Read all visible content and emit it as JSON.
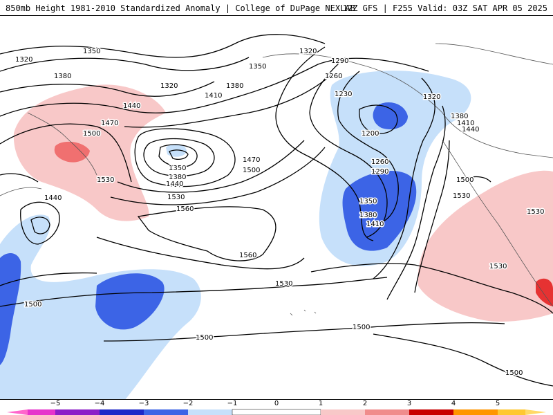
{
  "header": {
    "title_left": "850mb Height 1981-2010 Standardized Anomaly | College of DuPage NEXLAB",
    "title_right": "12Z GFS | F255 Valid: 03Z SAT APR 05 2025"
  },
  "colors": {
    "neg1": "#c6e0fa",
    "neg2": "#6e9cf0",
    "neg3": "#3c64e6",
    "neg4": "#1e28c8",
    "neg5": "#8c1ec8",
    "pos1": "#f8c8c8",
    "pos2": "#f08c8c",
    "pos3": "#e63232",
    "pos4": "#c80000",
    "pos5": "#ff9600",
    "contour": "#000000",
    "coast": "#555555"
  },
  "contour_labels": [
    "1320",
    "1350",
    "1380",
    "1320",
    "1350",
    "1380",
    "1410",
    "1440",
    "1470",
    "1500",
    "1530",
    "1350",
    "1380",
    "1440",
    "1470",
    "1500",
    "1530",
    "1560",
    "1560",
    "1530",
    "1440",
    "1320",
    "1290",
    "1260",
    "1230",
    "1200",
    "1260",
    "1290",
    "1320",
    "1380",
    "1410",
    "1440",
    "1350",
    "1380",
    "1410",
    "1500",
    "1530",
    "1530",
    "1530",
    "1500",
    "1500",
    "1500",
    "1500"
  ],
  "legend": {
    "ticks": [
      "−5",
      "−4",
      "−3",
      "−2",
      "−1",
      "0",
      "1",
      "2",
      "3",
      "4",
      "5"
    ]
  }
}
